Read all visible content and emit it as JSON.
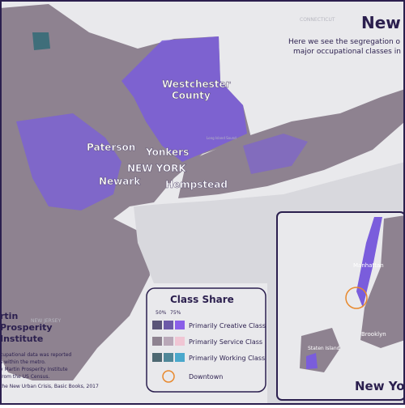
{
  "header": {
    "title": "New",
    "subtitle_lines": [
      "Here we see the segregation o",
      "major occupational classes in"
    ]
  },
  "places": {
    "westchester": [
      "Westchester",
      "County"
    ],
    "paterson": "Paterson",
    "yonkers": "Yonkers",
    "new_york": "NEW YORK",
    "newark": "Newark",
    "hempstead": "Hempstead",
    "connecticut": "CONNECTICUT",
    "new_jersey": "NEW JERSEY",
    "sound": "Long Island Sound"
  },
  "legend": {
    "title": "Class Share",
    "levels": [
      "50%",
      "75%"
    ],
    "items": [
      "Primarily Creative Class",
      "Primarily Service Class",
      "Primarily Working Class",
      "Downtown"
    ]
  },
  "credit": {
    "logo": [
      "rtin",
      "Prosperity",
      "Institute"
    ],
    "notes": [
      "cupational data was reported",
      "s within the metro.",
      "y Martin Prosperity Institute",
      "from the US Census.",
      "the New Urban Crisis, Basic Books, 2017"
    ]
  },
  "inset": {
    "title": "New Yo",
    "labels": [
      "Manhattan",
      "Brooklyn",
      "Staten Island"
    ]
  }
}
